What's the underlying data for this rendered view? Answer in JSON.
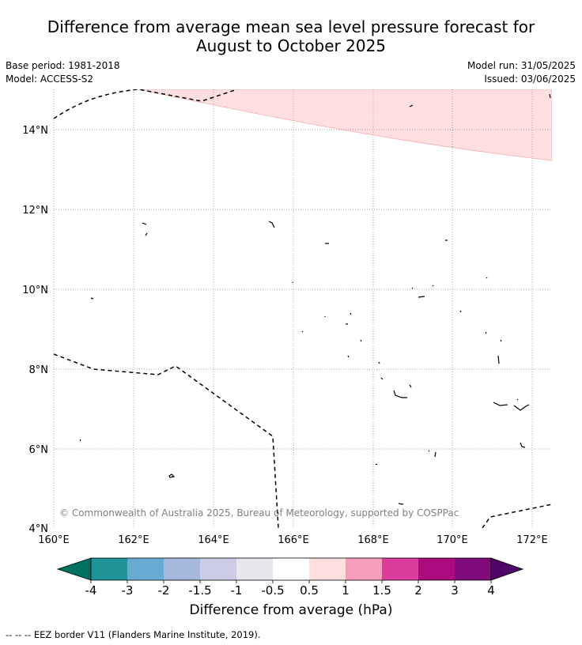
{
  "title_line1": "Difference from average mean sea level pressure forecast for",
  "title_line2": "August to October 2025",
  "base_period": "Base period: 1981-2018",
  "model": "Model: ACCESS-S2",
  "model_run": "Model run: 31/05/2025",
  "issued": "Issued: 03/06/2025",
  "copyright": "© Commonwealth of Australia 2025, Bureau of Meteorology, supported by COSPPac",
  "lat_labels": [
    "14°N",
    "12°N",
    "10°N",
    "8°N",
    "6°N",
    "4°N"
  ],
  "lon_labels": [
    "160°E",
    "162°E",
    "164°E",
    "166°E",
    "168°E",
    "170°E",
    "172°E"
  ],
  "colorbar": {
    "title": "Difference from average (hPa)",
    "tick_labels": [
      "-4",
      "-3",
      "-2",
      "-1.5",
      "-1",
      "-0.5",
      "0.5",
      "1",
      "1.5",
      "2",
      "3",
      "4"
    ],
    "colors": [
      "#007060",
      "#1e9499",
      "#68aad2",
      "#a6b9dc",
      "#cccce6",
      "#e8e6ec",
      "#ffffff",
      "#ffdfe0",
      "#f79ebc",
      "#dc3c9e",
      "#ae0a80",
      "#7f0a7b",
      "#4d0566"
    ]
  },
  "positive_anomaly_color": "#ffdfe0",
  "legend_note": "--  --  -- EEZ border V11 (Flanders Marine Institute, 2019)."
}
